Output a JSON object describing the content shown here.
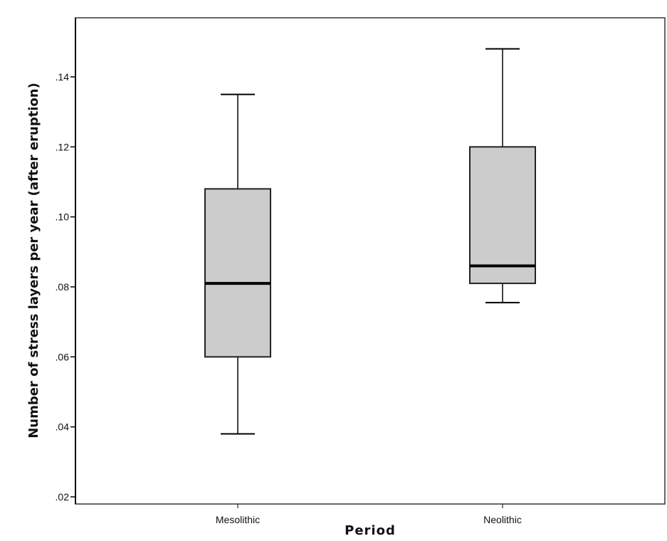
{
  "chart_data": {
    "type": "boxplot",
    "title": "",
    "xlabel": "Period",
    "ylabel": "Number of stress layers per year (after eruption)",
    "categories": [
      "Mesolithic",
      "Neolithic"
    ],
    "series": [
      {
        "name": "Mesolithic",
        "min": 0.038,
        "q1": 0.06,
        "median": 0.081,
        "q3": 0.108,
        "max": 0.135
      },
      {
        "name": "Neolithic",
        "min": 0.0755,
        "q1": 0.081,
        "median": 0.086,
        "q3": 0.12,
        "max": 0.148
      }
    ],
    "ylim": [
      0.018,
      0.155
    ],
    "yticks": [
      ".02",
      ".04",
      ".06",
      ".08",
      ".10",
      ".12",
      ".14"
    ],
    "ytick_values": [
      0.02,
      0.04,
      0.06,
      0.08,
      0.1,
      0.12,
      0.14
    ],
    "grid": false,
    "legend": null,
    "colors": {
      "box_fill": "#cccccc",
      "line": "#000000",
      "frame": "#333333"
    }
  }
}
